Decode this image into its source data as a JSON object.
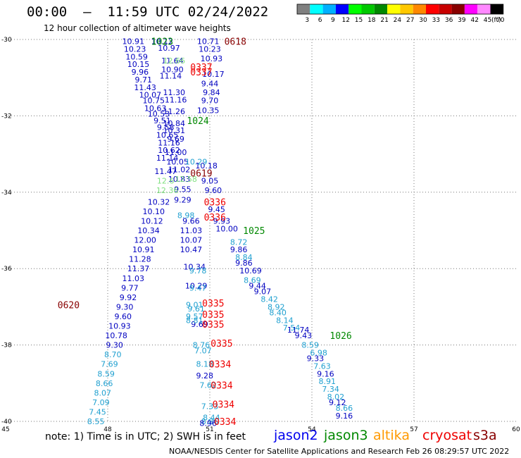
{
  "header": {
    "title": "00:00  –  11:59 UTC 02/24/2022",
    "subtitle": "12 hour collection of altimeter wave heights"
  },
  "note": "note:  1) Time is in UTC; 2) SWH is in feet",
  "footer": "NOAA/NESDIS Center for Satellite Applications and Research    Feb 26 08:29:57 UTC 2022",
  "satellites": [
    {
      "name": "jason2",
      "color": "#0000ee"
    },
    {
      "name": "jason3",
      "color": "#008800"
    },
    {
      "name": "altika",
      "color": "#ff9900"
    },
    {
      "name": "cryosat",
      "color": "#ee0000"
    },
    {
      "name": "s3a",
      "color": "#880000"
    }
  ],
  "colorbar": {
    "unit": "(ft)",
    "labels": [
      "3",
      "6",
      "9",
      "12",
      "15",
      "18",
      "21",
      "24",
      "27",
      "30",
      "33",
      "36",
      "39",
      "42",
      "45",
      "70"
    ],
    "colors": [
      "#808080",
      "#00ffff",
      "#00b0ff",
      "#0000ff",
      "#00ff00",
      "#00c800",
      "#008800",
      "#ffff00",
      "#ffc800",
      "#ff8800",
      "#ff0000",
      "#c80000",
      "#880000",
      "#ff00ff",
      "#ff88ff",
      "#000000"
    ]
  },
  "chart_data": {
    "type": "scatter",
    "title": "00:00 – 11:59 UTC 02/24/2022",
    "xlim": [
      45,
      60
    ],
    "ylim": [
      -40,
      -30
    ],
    "x_ticks": [
      "45",
      "48",
      "51",
      "54",
      "57",
      "60"
    ],
    "y_ticks": [
      "-30",
      "-32",
      "-34",
      "-36",
      "-38",
      "-40"
    ],
    "grid": true,
    "time_labels": [
      {
        "text": "0618",
        "x": 51.75,
        "y": -30.05,
        "color": "#880000"
      },
      {
        "text": "1023",
        "x": 49.6,
        "y": -30.05,
        "color": "#008800"
      },
      {
        "text": "0337",
        "x": 50.75,
        "y": -30.72,
        "color": "#ee0000"
      },
      {
        "text": "0337",
        "x": 50.75,
        "y": -30.85,
        "color": "#ee0000"
      },
      {
        "text": "1024",
        "x": 50.65,
        "y": -32.12,
        "color": "#008800"
      },
      {
        "text": "0619",
        "x": 50.75,
        "y": -33.5,
        "color": "#880000"
      },
      {
        "text": "0336",
        "x": 51.15,
        "y": -34.25,
        "color": "#ee0000"
      },
      {
        "text": "0336",
        "x": 51.15,
        "y": -34.65,
        "color": "#ee0000"
      },
      {
        "text": "1025",
        "x": 52.3,
        "y": -35.0,
        "color": "#008800"
      },
      {
        "text": "0620",
        "x": 46.85,
        "y": -36.95,
        "color": "#880000"
      },
      {
        "text": "0335",
        "x": 51.1,
        "y": -36.9,
        "color": "#ee0000"
      },
      {
        "text": "0335",
        "x": 51.1,
        "y": -37.2,
        "color": "#ee0000"
      },
      {
        "text": "0335",
        "x": 51.1,
        "y": -37.45,
        "color": "#ee0000"
      },
      {
        "text": "1026",
        "x": 54.85,
        "y": -37.75,
        "color": "#008800"
      },
      {
        "text": "0335",
        "x": 51.35,
        "y": -37.95,
        "color": "#ee0000"
      },
      {
        "text": "0334",
        "x": 51.3,
        "y": -38.5,
        "color": "#ee0000"
      },
      {
        "text": "0334",
        "x": 51.35,
        "y": -39.05,
        "color": "#ee0000"
      },
      {
        "text": "0334",
        "x": 51.4,
        "y": -39.55,
        "color": "#ee0000"
      },
      {
        "text": "0334",
        "x": 51.45,
        "y": -40.0,
        "color": "#ee0000"
      }
    ],
    "series": [
      {
        "satellite": "track_west_dark",
        "color": "#0000c0",
        "points": [
          {
            "x": 48.75,
            "y": -30.05,
            "v": "10.91"
          },
          {
            "x": 48.8,
            "y": -30.25,
            "v": "10.23"
          },
          {
            "x": 48.85,
            "y": -30.45,
            "v": "10.59"
          },
          {
            "x": 48.9,
            "y": -30.65,
            "v": "10.15"
          },
          {
            "x": 48.95,
            "y": -30.85,
            "v": "9.96"
          },
          {
            "x": 49.05,
            "y": -31.05,
            "v": "9.71"
          },
          {
            "x": 49.1,
            "y": -31.25,
            "v": "11.43"
          },
          {
            "x": 49.25,
            "y": -31.45,
            "v": "10.07"
          },
          {
            "x": 49.35,
            "y": -31.6,
            "v": "10.75"
          },
          {
            "x": 49.4,
            "y": -31.8,
            "v": "10.63"
          },
          {
            "x": 49.5,
            "y": -31.95,
            "v": "10.53"
          },
          {
            "x": 49.6,
            "y": -32.12,
            "v": "9.51"
          },
          {
            "x": 49.7,
            "y": -32.3,
            "v": "9.58"
          },
          {
            "x": 49.75,
            "y": -32.5,
            "v": "10.65"
          },
          {
            "x": 49.8,
            "y": -32.7,
            "v": "11.16"
          },
          {
            "x": 49.8,
            "y": -32.9,
            "v": "10.62"
          },
          {
            "x": 49.75,
            "y": -33.1,
            "v": "11.14"
          },
          {
            "x": 49.7,
            "y": -33.45,
            "v": "11.47"
          },
          {
            "x": 49.5,
            "y": -34.25,
            "v": "10.32"
          },
          {
            "x": 49.35,
            "y": -34.5,
            "v": "10.10"
          },
          {
            "x": 49.3,
            "y": -34.75,
            "v": "10.12"
          },
          {
            "x": 49.2,
            "y": -35.0,
            "v": "10.34"
          },
          {
            "x": 49.1,
            "y": -35.25,
            "v": "12.00"
          },
          {
            "x": 49.05,
            "y": -35.5,
            "v": "10.91"
          },
          {
            "x": 48.95,
            "y": -35.75,
            "v": "11.28"
          },
          {
            "x": 48.9,
            "y": -36.0,
            "v": "11.37"
          },
          {
            "x": 48.75,
            "y": -36.25,
            "v": "11.03"
          },
          {
            "x": 48.65,
            "y": -36.5,
            "v": "9.77"
          },
          {
            "x": 48.6,
            "y": -36.75,
            "v": "9.92"
          },
          {
            "x": 48.5,
            "y": -37.0,
            "v": "9.30"
          },
          {
            "x": 48.45,
            "y": -37.25,
            "v": "9.60"
          },
          {
            "x": 48.35,
            "y": -37.5,
            "v": "10.93"
          },
          {
            "x": 48.25,
            "y": -37.75,
            "v": "10.78"
          },
          {
            "x": 48.2,
            "y": -38.0,
            "v": "9.30"
          }
        ]
      },
      {
        "satellite": "track_west_light",
        "color": "#20a0d0",
        "points": [
          {
            "x": 48.15,
            "y": -38.25,
            "v": "8.70"
          },
          {
            "x": 48.05,
            "y": -38.5,
            "v": "7.69"
          },
          {
            "x": 47.95,
            "y": -38.75,
            "v": "8.59"
          },
          {
            "x": 47.9,
            "y": -39.0,
            "v": "8.66"
          },
          {
            "x": 47.85,
            "y": -39.25,
            "v": "8.07"
          },
          {
            "x": 47.8,
            "y": -39.5,
            "v": "7.09"
          },
          {
            "x": 47.7,
            "y": -39.75,
            "v": "7.45"
          },
          {
            "x": 47.65,
            "y": -40.0,
            "v": "8.55"
          }
        ]
      },
      {
        "satellite": "track_center_upper",
        "color": "#0000c0",
        "points": [
          {
            "x": 49.6,
            "y": -30.05,
            "v": "10.12"
          },
          {
            "x": 49.8,
            "y": -30.22,
            "v": "10.97"
          },
          {
            "x": 49.9,
            "y": -30.55,
            "v": "11.64"
          },
          {
            "x": 49.9,
            "y": -30.78,
            "v": "10.90"
          },
          {
            "x": 49.85,
            "y": -30.95,
            "v": "11.14"
          },
          {
            "x": 49.95,
            "y": -31.38,
            "v": "11.30"
          },
          {
            "x": 50.0,
            "y": -31.58,
            "v": "11.16"
          },
          {
            "x": 49.95,
            "y": -31.88,
            "v": "11.26"
          },
          {
            "x": 49.95,
            "y": -32.2,
            "v": "10.84"
          },
          {
            "x": 49.95,
            "y": -32.38,
            "v": "10.31"
          },
          {
            "x": 50.0,
            "y": -32.6,
            "v": "9.69"
          },
          {
            "x": 50.0,
            "y": -32.95,
            "v": "11.00"
          },
          {
            "x": 50.05,
            "y": -33.2,
            "v": "10.05"
          },
          {
            "x": 50.1,
            "y": -33.4,
            "v": "11.02"
          },
          {
            "x": 50.1,
            "y": -33.65,
            "v": "10.83"
          },
          {
            "x": 50.2,
            "y": -33.92,
            "v": "9.55"
          },
          {
            "x": 50.2,
            "y": -34.2,
            "v": "9.29"
          },
          {
            "x": 50.45,
            "y": -34.75,
            "v": "9.66"
          },
          {
            "x": 50.45,
            "y": -35.0,
            "v": "11.03"
          },
          {
            "x": 50.45,
            "y": -35.25,
            "v": "10.07"
          },
          {
            "x": 50.45,
            "y": -35.5,
            "v": "10.47"
          },
          {
            "x": 50.55,
            "y": -35.95,
            "v": "10.34"
          },
          {
            "x": 50.6,
            "y": -36.45,
            "v": "10.29"
          },
          {
            "x": 50.7,
            "y": -37.45,
            "v": "9.69"
          }
        ]
      },
      {
        "satellite": "track_center_right",
        "color": "#0000c0",
        "points": [
          {
            "x": 50.95,
            "y": -30.05,
            "v": "10.71"
          },
          {
            "x": 51.0,
            "y": -30.25,
            "v": "10.23"
          },
          {
            "x": 51.05,
            "y": -30.5,
            "v": "10.93"
          },
          {
            "x": 51.1,
            "y": -30.9,
            "v": "10.17"
          },
          {
            "x": 51.0,
            "y": -31.15,
            "v": "9.44"
          },
          {
            "x": 51.05,
            "y": -31.38,
            "v": "9.84"
          },
          {
            "x": 51.0,
            "y": -31.6,
            "v": "9.70"
          },
          {
            "x": 50.95,
            "y": -31.85,
            "v": "10.35"
          },
          {
            "x": 50.9,
            "y": -33.3,
            "v": "10.18"
          },
          {
            "x": 51.0,
            "y": -33.7,
            "v": "9.05"
          },
          {
            "x": 51.1,
            "y": -33.95,
            "v": "9.60"
          },
          {
            "x": 51.2,
            "y": -34.45,
            "v": "9.45"
          },
          {
            "x": 51.35,
            "y": -34.75,
            "v": "9.93"
          },
          {
            "x": 51.5,
            "y": -34.95,
            "v": "10.00"
          },
          {
            "x": 51.85,
            "y": -35.5,
            "v": "9.86"
          },
          {
            "x": 52.0,
            "y": -35.85,
            "v": "9.86"
          },
          {
            "x": 52.2,
            "y": -36.05,
            "v": "10.69"
          },
          {
            "x": 52.4,
            "y": -36.45,
            "v": "9.44"
          },
          {
            "x": 52.55,
            "y": -36.6,
            "v": "9.07"
          },
          {
            "x": 53.6,
            "y": -37.6,
            "v": "11.74"
          },
          {
            "x": 53.75,
            "y": -37.75,
            "v": "9.43"
          },
          {
            "x": 54.1,
            "y": -38.35,
            "v": "9.33"
          },
          {
            "x": 54.4,
            "y": -38.75,
            "v": "9.16"
          },
          {
            "x": 54.75,
            "y": -39.5,
            "v": "9.12"
          },
          {
            "x": 54.95,
            "y": -39.85,
            "v": "9.16"
          }
        ]
      },
      {
        "satellite": "track_center_light",
        "color": "#20a0d0",
        "points": [
          {
            "x": 50.6,
            "y": -33.2,
            "v": "10.29"
          },
          {
            "x": 51.85,
            "y": -35.3,
            "v": "8.72"
          },
          {
            "x": 52.0,
            "y": -35.7,
            "v": "8.84"
          },
          {
            "x": 52.25,
            "y": -36.3,
            "v": "8.69"
          },
          {
            "x": 52.75,
            "y": -36.8,
            "v": "8.42"
          },
          {
            "x": 52.95,
            "y": -37.0,
            "v": "8.92"
          },
          {
            "x": 53.0,
            "y": -37.15,
            "v": "8.40"
          },
          {
            "x": 53.2,
            "y": -37.35,
            "v": "8.14"
          },
          {
            "x": 53.4,
            "y": -37.55,
            "v": "7.54"
          },
          {
            "x": 53.95,
            "y": -38.0,
            "v": "8.59"
          },
          {
            "x": 54.2,
            "y": -38.2,
            "v": "6.98"
          },
          {
            "x": 54.3,
            "y": -38.55,
            "v": "7.63"
          },
          {
            "x": 54.45,
            "y": -38.95,
            "v": "8.91"
          },
          {
            "x": 54.55,
            "y": -39.15,
            "v": "7.34"
          },
          {
            "x": 54.7,
            "y": -39.35,
            "v": "8.02"
          },
          {
            "x": 54.95,
            "y": -39.65,
            "v": "8.66"
          },
          {
            "x": 50.3,
            "y": -34.6,
            "v": "8.98"
          },
          {
            "x": 50.65,
            "y": -36.05,
            "v": "9.78"
          },
          {
            "x": 50.65,
            "y": -36.5,
            "v": "9.47"
          },
          {
            "x": 50.55,
            "y": -36.95,
            "v": "9.01"
          },
          {
            "x": 50.6,
            "y": -37.05,
            "v": "9.61"
          },
          {
            "x": 50.55,
            "y": -37.25,
            "v": "9.57"
          },
          {
            "x": 50.55,
            "y": -37.35,
            "v": "8.81"
          },
          {
            "x": 50.75,
            "y": -38.0,
            "v": "8.76"
          },
          {
            "x": 50.8,
            "y": -38.15,
            "v": "7.07"
          },
          {
            "x": 50.85,
            "y": -38.5,
            "v": "8.18"
          },
          {
            "x": 50.95,
            "y": -39.05,
            "v": "7.62"
          },
          {
            "x": 51.0,
            "y": -39.6,
            "v": "7.33"
          },
          {
            "x": 51.05,
            "y": -39.9,
            "v": "8.44"
          },
          {
            "x": 51.0,
            "y": -40.0,
            "v": "8.86"
          }
        ]
      },
      {
        "satellite": "track_center_misc",
        "color": "#0000c0",
        "points": [
          {
            "x": 50.85,
            "y": -38.8,
            "v": "9.28"
          },
          {
            "x": 50.95,
            "y": -40.05,
            "v": "8.96"
          }
        ]
      },
      {
        "satellite": "track_green_light",
        "color": "#80e080",
        "points": [
          {
            "x": 49.95,
            "y": -30.55,
            "v": "12.66"
          },
          {
            "x": 49.7,
            "y": -33.7,
            "v": "12.6"
          },
          {
            "x": 49.75,
            "y": -33.95,
            "v": "12.36"
          },
          {
            "x": 50.3,
            "y": -33.65,
            "v": "12.58"
          }
        ]
      }
    ]
  }
}
